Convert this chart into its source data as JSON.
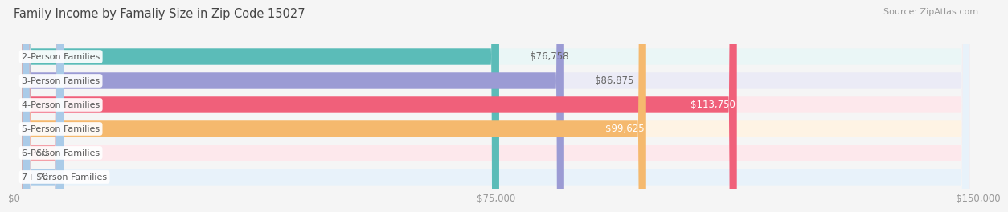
{
  "title": "Family Income by Famaliy Size in Zip Code 15027",
  "source": "Source: ZipAtlas.com",
  "categories": [
    "2-Person Families",
    "3-Person Families",
    "4-Person Families",
    "5-Person Families",
    "6-Person Families",
    "7+ Person Families"
  ],
  "values": [
    76758,
    86875,
    113750,
    99625,
    0,
    0
  ],
  "bar_colors": [
    "#5bbcb8",
    "#9b9bd4",
    "#f0607a",
    "#f5b96e",
    "#f4a0a8",
    "#aacbe8"
  ],
  "bar_bg_colors": [
    "#eaf6f6",
    "#ebebf6",
    "#fde8ec",
    "#fef3e4",
    "#fde8ec",
    "#e8f2fa"
  ],
  "value_labels": [
    "$76,758",
    "$86,875",
    "$113,750",
    "$99,625",
    "$0",
    "$0"
  ],
  "label_inside": [
    false,
    false,
    true,
    true,
    false,
    false
  ],
  "xlim": [
    0,
    150000
  ],
  "xtick_values": [
    0,
    75000,
    150000
  ],
  "xtick_labels": [
    "$0",
    "$75,000",
    "$150,000"
  ],
  "background_color": "#f5f5f5",
  "title_fontsize": 10.5,
  "source_fontsize": 8,
  "label_fontsize": 8.5,
  "tick_fontsize": 8.5,
  "category_fontsize": 8
}
